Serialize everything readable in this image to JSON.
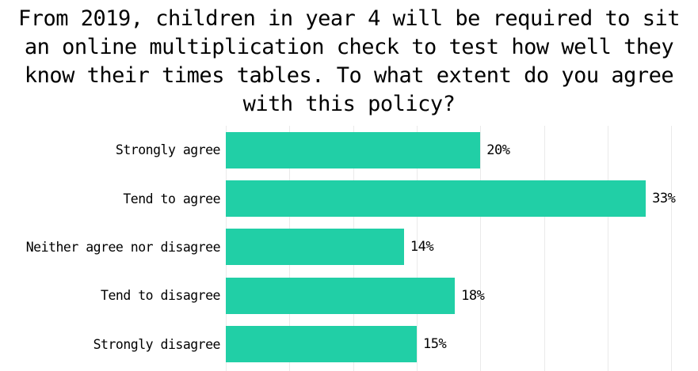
{
  "title": {
    "text": "From 2019, children in year 4 will be required to sit an online multiplication check to test how well they know their times tables. To what extent do you agree with this policy?",
    "lines": [
      "From 2019, children in year 4 will be required to sit",
      "an online multiplication check to test how well they",
      "know their times tables. To what extent do you agree",
      "with this policy?"
    ]
  },
  "chart_data": {
    "type": "bar",
    "orientation": "horizontal",
    "title": "From 2019, children in year 4 will be required to sit an online multiplication check to test how well they know their times tables. To what extent do you agree with this policy?",
    "categories": [
      "Strongly agree",
      "Tend to agree",
      "Neither agree nor disagree",
      "Tend to disagree",
      "Strongly disagree"
    ],
    "values": [
      20,
      33,
      14,
      18,
      15
    ],
    "value_labels": [
      "20%",
      "33%",
      "14%",
      "18%",
      "15%"
    ],
    "xlabel": "",
    "ylabel": "",
    "xlim": [
      0,
      37.1
    ],
    "gridline_step_pct": 5,
    "grid": "vertical-only",
    "legend": "none",
    "bar_color": "#21CFA6",
    "grid_color": "#EAEAEA",
    "text_color": "#000000",
    "background_color": "#FFFFFF"
  }
}
